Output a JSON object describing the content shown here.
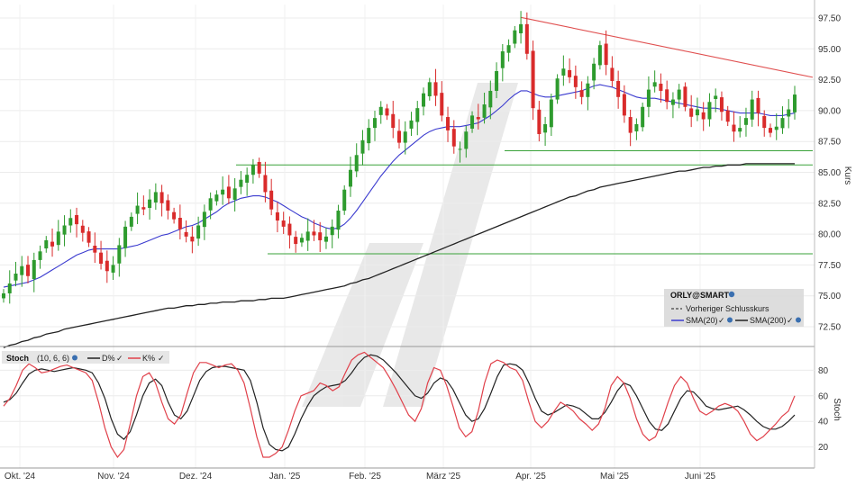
{
  "chart_data": [
    {
      "type": "candlestick",
      "ylabel": "Kurs",
      "ylim": [
        70.5,
        98.5
      ],
      "yticks": [
        "97.50",
        "95.00",
        "92.50",
        "90.00",
        "87.50",
        "85.00",
        "82.50",
        "80.00",
        "77.50",
        "75.00",
        "72.50"
      ],
      "xticks": [
        "Okt. '24",
        "Nov. '24",
        "Dez. '24",
        "Jan. '25",
        "Feb. '25",
        "März '25",
        "Apr. '25",
        "Mai '25",
        "Juni '25"
      ],
      "legend": {
        "title": "ORLY@SMART",
        "items": [
          "Vorheriger Schlusskurs",
          "SMA(20)",
          "SMA(200)"
        ]
      },
      "colors": {
        "up": "#2e9b2e",
        "down": "#d92b2b",
        "sma20": "#3a3acf",
        "sma200": "#222222",
        "trend": "#e05050",
        "support": "#3aa23a"
      },
      "close_series": [
        75.2,
        76.0,
        76.8,
        77.4,
        76.6,
        77.9,
        78.6,
        79.5,
        79.0,
        80.2,
        80.7,
        81.3,
        80.8,
        80.1,
        79.3,
        78.5,
        77.6,
        77.0,
        77.5,
        79.1,
        80.6,
        81.4,
        82.3,
        82.0,
        82.8,
        83.4,
        82.5,
        81.9,
        81.2,
        80.4,
        79.8,
        79.4,
        80.7,
        81.8,
        82.9,
        83.2,
        83.6,
        82.9,
        83.7,
        84.4,
        84.8,
        85.6,
        84.9,
        83.4,
        82.0,
        81.1,
        80.6,
        79.9,
        79.2,
        79.7,
        80.2,
        79.9,
        79.5,
        79.8,
        80.6,
        81.9,
        83.6,
        85.2,
        86.4,
        87.6,
        88.6,
        89.4,
        90.3,
        89.6,
        88.6,
        87.4,
        88.3,
        89.2,
        90.2,
        91.4,
        92.3,
        91.2,
        89.6,
        88.4,
        87.1,
        86.9,
        88.3,
        89.6,
        89.3,
        90.5,
        91.6,
        93.2,
        94.8,
        95.3,
        96.5,
        97.0,
        94.6,
        90.2,
        88.1,
        88.9,
        90.9,
        92.6,
        93.4,
        92.7,
        91.9,
        91.1,
        92.2,
        93.8,
        95.3,
        93.7,
        92.4,
        91.1,
        89.6,
        88.2,
        88.9,
        90.3,
        91.7,
        92.3,
        91.6,
        90.7,
        90.9,
        91.7,
        90.3,
        89.5,
        90.1,
        89.3,
        90.7,
        91.2,
        89.9,
        89.1,
        88.3,
        88.6,
        89.4,
        90.9,
        89.8,
        88.6,
        88.2,
        88.7,
        89.4,
        90.1,
        91.3
      ],
      "sma20": [
        75.7,
        75.8,
        75.9,
        76.0,
        76.1,
        76.3,
        76.5,
        76.8,
        77.1,
        77.4,
        77.7,
        78.0,
        78.3,
        78.5,
        78.7,
        78.8,
        78.8,
        78.8,
        78.8,
        78.8,
        78.9,
        79.0,
        79.1,
        79.3,
        79.5,
        79.7,
        79.9,
        80.0,
        80.2,
        80.4,
        80.6,
        80.7,
        80.9,
        81.2,
        81.5,
        81.8,
        82.2,
        82.5,
        82.7,
        82.9,
        83.0,
        83.1,
        83.1,
        83.0,
        82.8,
        82.6,
        82.3,
        82.0,
        81.7,
        81.4,
        81.2,
        80.9,
        80.7,
        80.5,
        80.4,
        80.5,
        80.8,
        81.3,
        81.9,
        82.6,
        83.3,
        84.0,
        84.7,
        85.3,
        85.9,
        86.4,
        86.8,
        87.2,
        87.6,
        88.0,
        88.3,
        88.5,
        88.6,
        88.7,
        88.7,
        88.7,
        88.8,
        88.9,
        89.0,
        89.3,
        89.6,
        90.0,
        90.4,
        90.9,
        91.3,
        91.6,
        91.6,
        91.4,
        91.2,
        91.1,
        91.1,
        91.2,
        91.3,
        91.4,
        91.5,
        91.6,
        91.8,
        92.0,
        92.1,
        92.0,
        91.9,
        91.7,
        91.5,
        91.3,
        91.1,
        91.0,
        91.0,
        91.0,
        90.9,
        90.8,
        90.7,
        90.6,
        90.5,
        90.4,
        90.3,
        90.2,
        90.2,
        90.2,
        90.1,
        90.0,
        89.9,
        89.8,
        89.8,
        89.8,
        89.8,
        89.7,
        89.6,
        89.6,
        89.6,
        89.7,
        89.8
      ],
      "sma200": [
        70.8,
        71.0,
        71.1,
        71.3,
        71.4,
        71.6,
        71.7,
        71.9,
        72.0,
        72.1,
        72.3,
        72.4,
        72.5,
        72.6,
        72.7,
        72.8,
        72.9,
        73.0,
        73.1,
        73.2,
        73.3,
        73.4,
        73.5,
        73.6,
        73.7,
        73.8,
        73.9,
        74.0,
        74.0,
        74.1,
        74.2,
        74.2,
        74.3,
        74.3,
        74.4,
        74.4,
        74.5,
        74.5,
        74.5,
        74.6,
        74.6,
        74.6,
        74.7,
        74.7,
        74.8,
        74.8,
        74.8,
        74.9,
        75.0,
        75.1,
        75.2,
        75.3,
        75.4,
        75.5,
        75.6,
        75.7,
        75.8,
        76.0,
        76.1,
        76.3,
        76.4,
        76.6,
        76.8,
        77.0,
        77.2,
        77.4,
        77.6,
        77.8,
        78.0,
        78.2,
        78.4,
        78.6,
        78.8,
        79.0,
        79.2,
        79.4,
        79.6,
        79.8,
        80.0,
        80.2,
        80.4,
        80.6,
        80.8,
        81.0,
        81.2,
        81.4,
        81.6,
        81.8,
        82.0,
        82.2,
        82.4,
        82.6,
        82.8,
        83.0,
        83.1,
        83.3,
        83.5,
        83.6,
        83.8,
        83.9,
        84.0,
        84.1,
        84.2,
        84.3,
        84.4,
        84.5,
        84.6,
        84.7,
        84.8,
        84.9,
        85.0,
        85.1,
        85.1,
        85.2,
        85.3,
        85.4,
        85.4,
        85.5,
        85.5,
        85.6,
        85.6,
        85.6,
        85.7,
        85.7,
        85.7,
        85.7,
        85.7,
        85.7,
        85.7,
        85.7,
        85.7
      ]
    },
    {
      "type": "line",
      "ylabel": "Stoch",
      "ylim": [
        5,
        95
      ],
      "yticks": [
        "80",
        "60",
        "40",
        "20"
      ],
      "legend": {
        "title": "Stoch",
        "params": "(10, 6, 6)",
        "items": [
          "D%",
          "K%"
        ]
      },
      "series": [
        {
          "name": "D%",
          "values": [
            55,
            57,
            62,
            70,
            77,
            80,
            81,
            80,
            79,
            80,
            81,
            82,
            81,
            80,
            78,
            70,
            58,
            42,
            30,
            26,
            32,
            45,
            60,
            70,
            73,
            68,
            55,
            45,
            42,
            48,
            60,
            72,
            79,
            82,
            83,
            83,
            82,
            81,
            80,
            72,
            55,
            35,
            22,
            18,
            17,
            20,
            30,
            42,
            52,
            60,
            64,
            67,
            68,
            69,
            72,
            78,
            85,
            90,
            92,
            91,
            88,
            83,
            78,
            72,
            66,
            60,
            58,
            62,
            70,
            74,
            72,
            65,
            55,
            45,
            40,
            42,
            50,
            62,
            75,
            84,
            85,
            84,
            80,
            70,
            58,
            48,
            45,
            47,
            50,
            53,
            52,
            50,
            46,
            42,
            42,
            47,
            55,
            64,
            70,
            68,
            60,
            50,
            40,
            34,
            33,
            38,
            48,
            58,
            64,
            63,
            58,
            52,
            50,
            49,
            50,
            51,
            52,
            49,
            45,
            40,
            36,
            34,
            34,
            36,
            40,
            45
          ],
          "color": "#222222"
        },
        {
          "name": "K%",
          "values": [
            52,
            58,
            68,
            80,
            85,
            82,
            78,
            79,
            81,
            83,
            84,
            82,
            80,
            78,
            72,
            55,
            35,
            20,
            12,
            18,
            38,
            60,
            75,
            78,
            70,
            55,
            42,
            38,
            45,
            62,
            78,
            86,
            86,
            84,
            82,
            84,
            85,
            80,
            70,
            50,
            28,
            12,
            12,
            15,
            20,
            33,
            48,
            60,
            62,
            64,
            70,
            68,
            64,
            67,
            78,
            88,
            92,
            94,
            90,
            86,
            82,
            74,
            65,
            55,
            45,
            40,
            50,
            70,
            82,
            80,
            68,
            52,
            35,
            28,
            32,
            48,
            70,
            85,
            88,
            86,
            82,
            80,
            72,
            55,
            40,
            35,
            40,
            48,
            55,
            52,
            48,
            42,
            38,
            33,
            38,
            50,
            68,
            75,
            70,
            58,
            42,
            30,
            25,
            28,
            40,
            55,
            68,
            75,
            70,
            58,
            48,
            45,
            48,
            52,
            54,
            52,
            48,
            40,
            30,
            25,
            28,
            33,
            38,
            44,
            48,
            60
          ],
          "color": "#e0404a"
        }
      ]
    }
  ]
}
